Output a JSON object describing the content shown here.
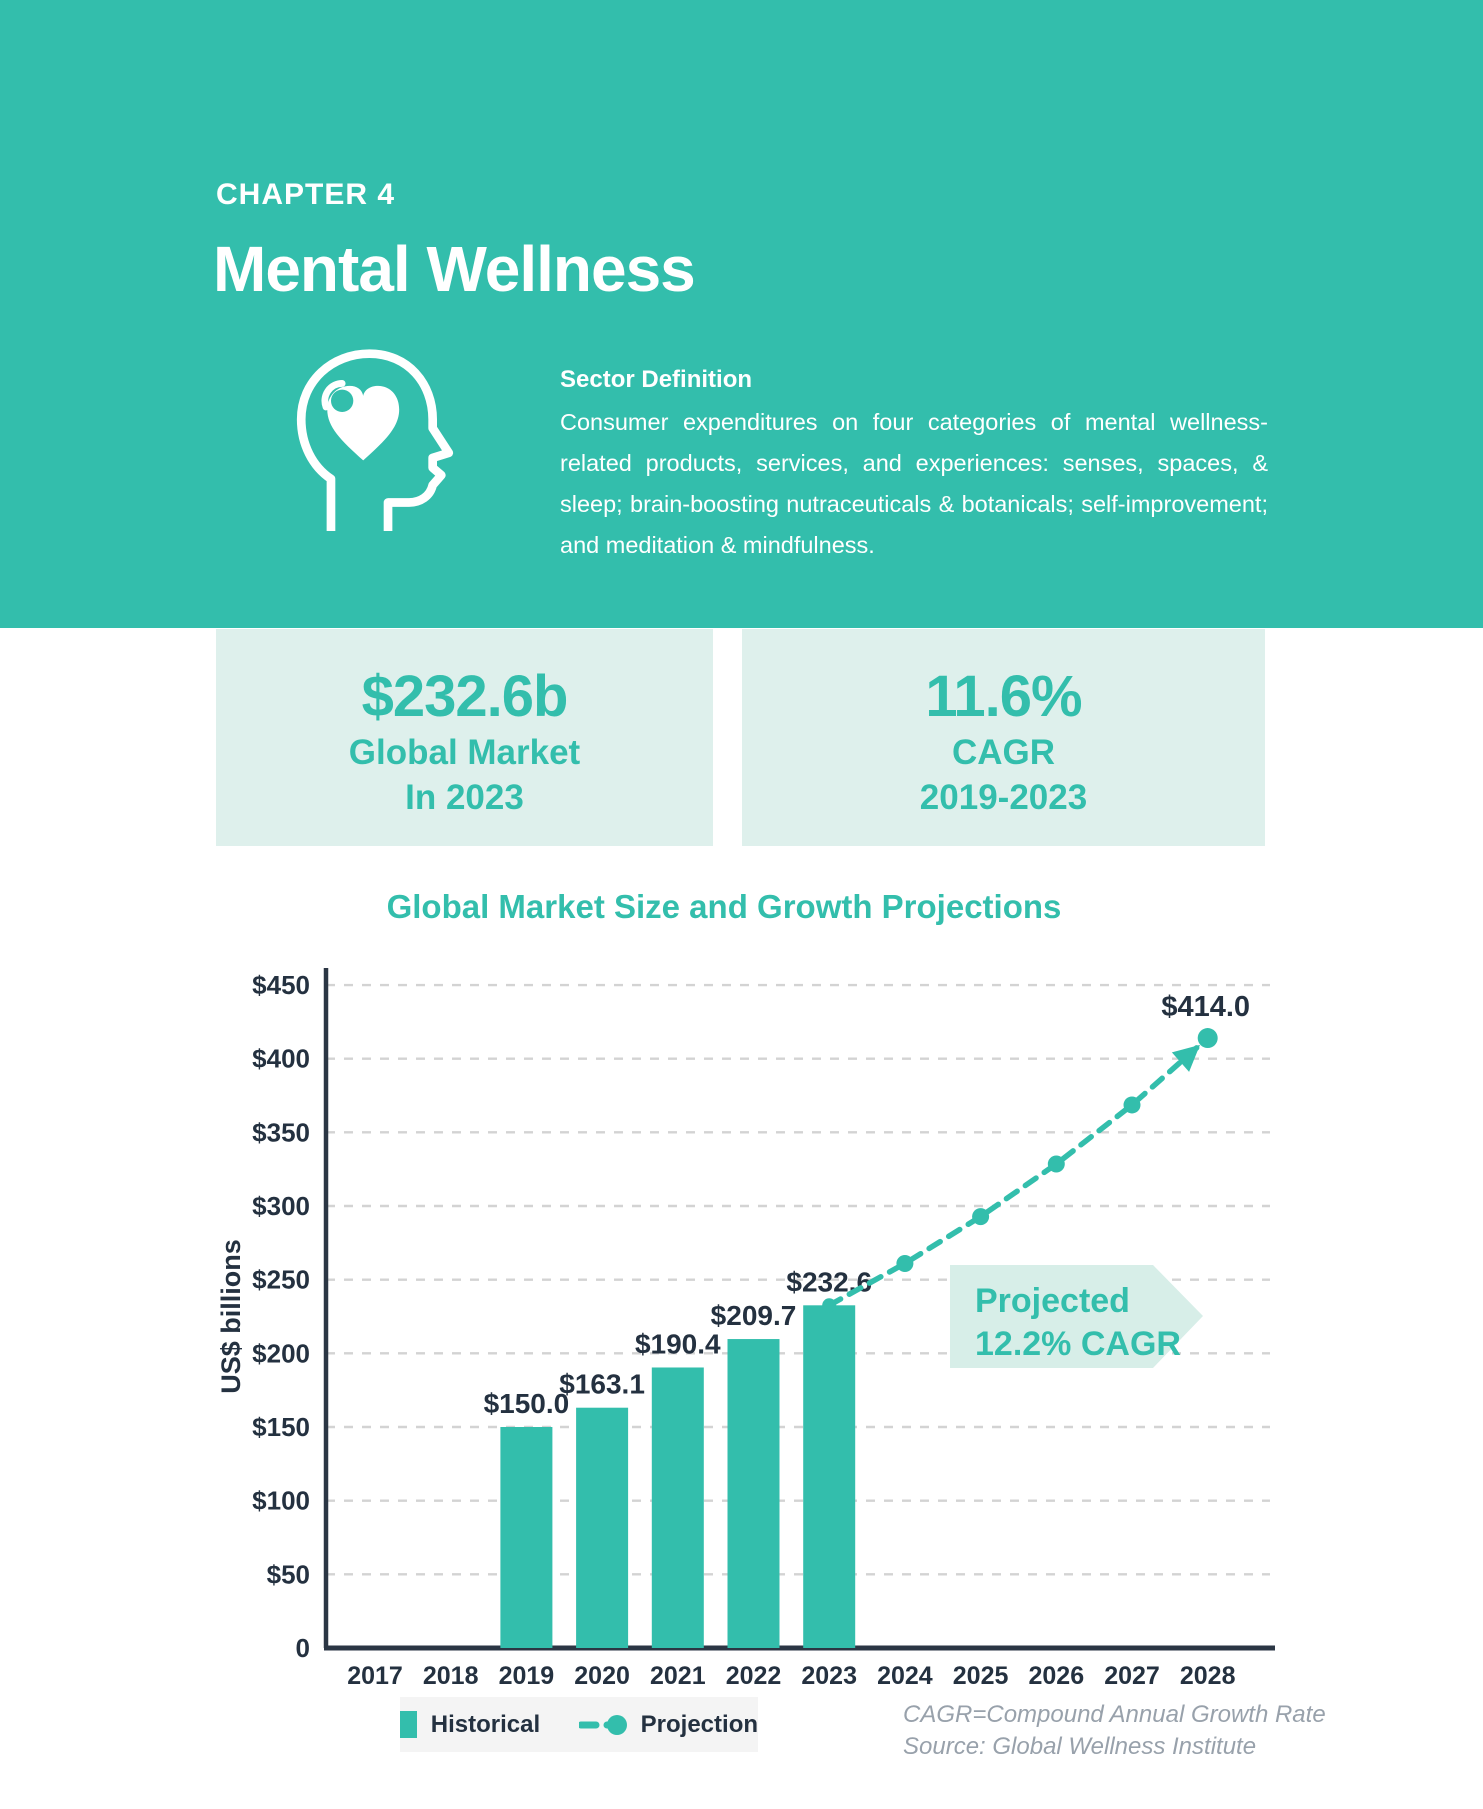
{
  "colors": {
    "teal": "#33beac",
    "mint_card": "#def0ec",
    "mint_callout": "#d7eee8",
    "dark": "#243140",
    "axis": "#2b3644",
    "grid": "#d3d3d3",
    "muted": "#98a1ab",
    "white": "#ffffff",
    "legend_bg": "#f4f4f4"
  },
  "header": {
    "kicker": "CHAPTER 4",
    "title": "Mental Wellness",
    "icon": "head-with-heart-icon",
    "sector_definition_heading": "Sector Definition",
    "sector_definition_body": "Consumer expenditures on four categories of mental wellness-related products, services, and experiences: senses, spaces, & sleep; brain-boosting nutraceuticals & botanicals; self-improvement; and meditation & mindfulness."
  },
  "stats": [
    {
      "value": "$232.6b",
      "line1": "Global Market",
      "line2": "In 2023"
    },
    {
      "value": "11.6%",
      "line1": "CAGR",
      "line2": "2019-2023"
    }
  ],
  "chart_data": {
    "type": "bar",
    "title": "Global Market Size and Growth Projections",
    "ylabel": "US$ billions",
    "ylim": [
      0,
      450
    ],
    "ytick_step": 50,
    "grid": "horizontal-dashed",
    "legend_position": "bottom-left",
    "categories": [
      "2017",
      "2018",
      "2019",
      "2020",
      "2021",
      "2022",
      "2023",
      "2024",
      "2025",
      "2026",
      "2027",
      "2028"
    ],
    "series": [
      {
        "name": "Historical",
        "type": "bar",
        "years": [
          "2019",
          "2020",
          "2021",
          "2022",
          "2023"
        ],
        "values": [
          150.0,
          163.1,
          190.4,
          209.7,
          232.6
        ],
        "labels": [
          "$150.0",
          "$163.1",
          "$190.4",
          "$209.7",
          "$232.6"
        ]
      },
      {
        "name": "Projection",
        "type": "dashed-line-with-dots-arrow",
        "years": [
          "2023",
          "2024",
          "2025",
          "2026",
          "2027",
          "2028"
        ],
        "values": [
          232.6,
          261.0,
          292.8,
          328.5,
          368.6,
          414.0
        ],
        "end_label": "$414.0"
      }
    ],
    "annotation": {
      "line1": "Projected",
      "line2": "12.2% CAGR"
    },
    "legend": [
      {
        "label": "Historical",
        "swatch": "square"
      },
      {
        "label": "Projection",
        "swatch": "dash-dot-dash"
      }
    ]
  },
  "footnote": {
    "line1": "CAGR=Compound Annual Growth Rate",
    "line2": "Source: Global Wellness Institute"
  }
}
